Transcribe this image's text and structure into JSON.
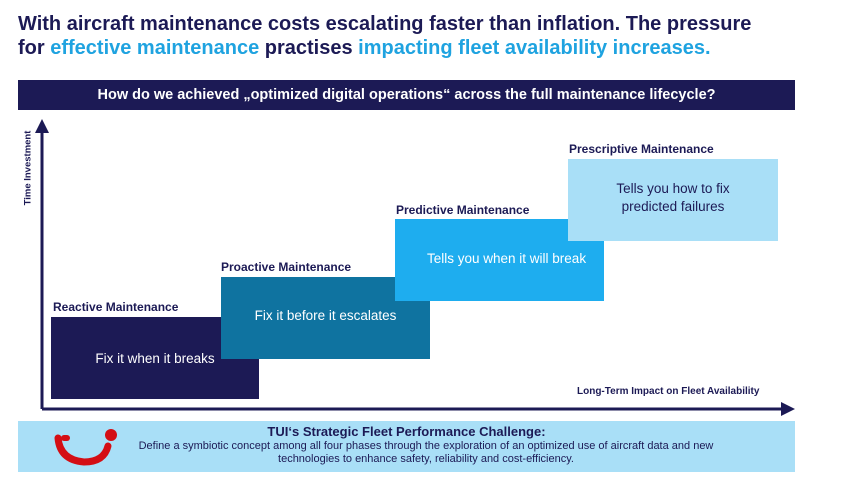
{
  "headline": {
    "line1": "With aircraft maintenance costs escalating faster than inflation. The pressure",
    "line2_for": "for ",
    "line2_hl1": "effective maintenance",
    "line2_mid": " practises ",
    "line2_hl2": "impacting fleet availability increases."
  },
  "question": "How do we achieved „optimized digital operations“ across the full maintenance lifecycle?",
  "axes": {
    "y_label": "Time Investment",
    "x_label": "Long-Term Impact on Fleet Availability"
  },
  "phases": [
    {
      "title": "Reactive Maintenance",
      "text": "Fix it when it breaks"
    },
    {
      "title": "Proactive Maintenance",
      "text": "Fix it before it escalates"
    },
    {
      "title": "Predictive Maintenance",
      "text": "Tells you when it will break"
    },
    {
      "title": "Prescriptive Maintenance",
      "text": "Tells you how to fix predicted failures"
    }
  ],
  "challenge": {
    "title": "TUI‘s Strategic Fleet Performance Challenge:",
    "body": "Define a symbiotic concept among all four phases through the exploration of an optimized use of aircraft data and new technologies to enhance safety, reliability and cost-efficiency."
  },
  "colors": {
    "navy": "#1c1a55",
    "teal": "#0f73a0",
    "blue": "#1eadef",
    "light_blue": "#a9dff7",
    "logo_red": "#d40e14"
  },
  "icons": {
    "logo": "tui-smile-logo"
  }
}
